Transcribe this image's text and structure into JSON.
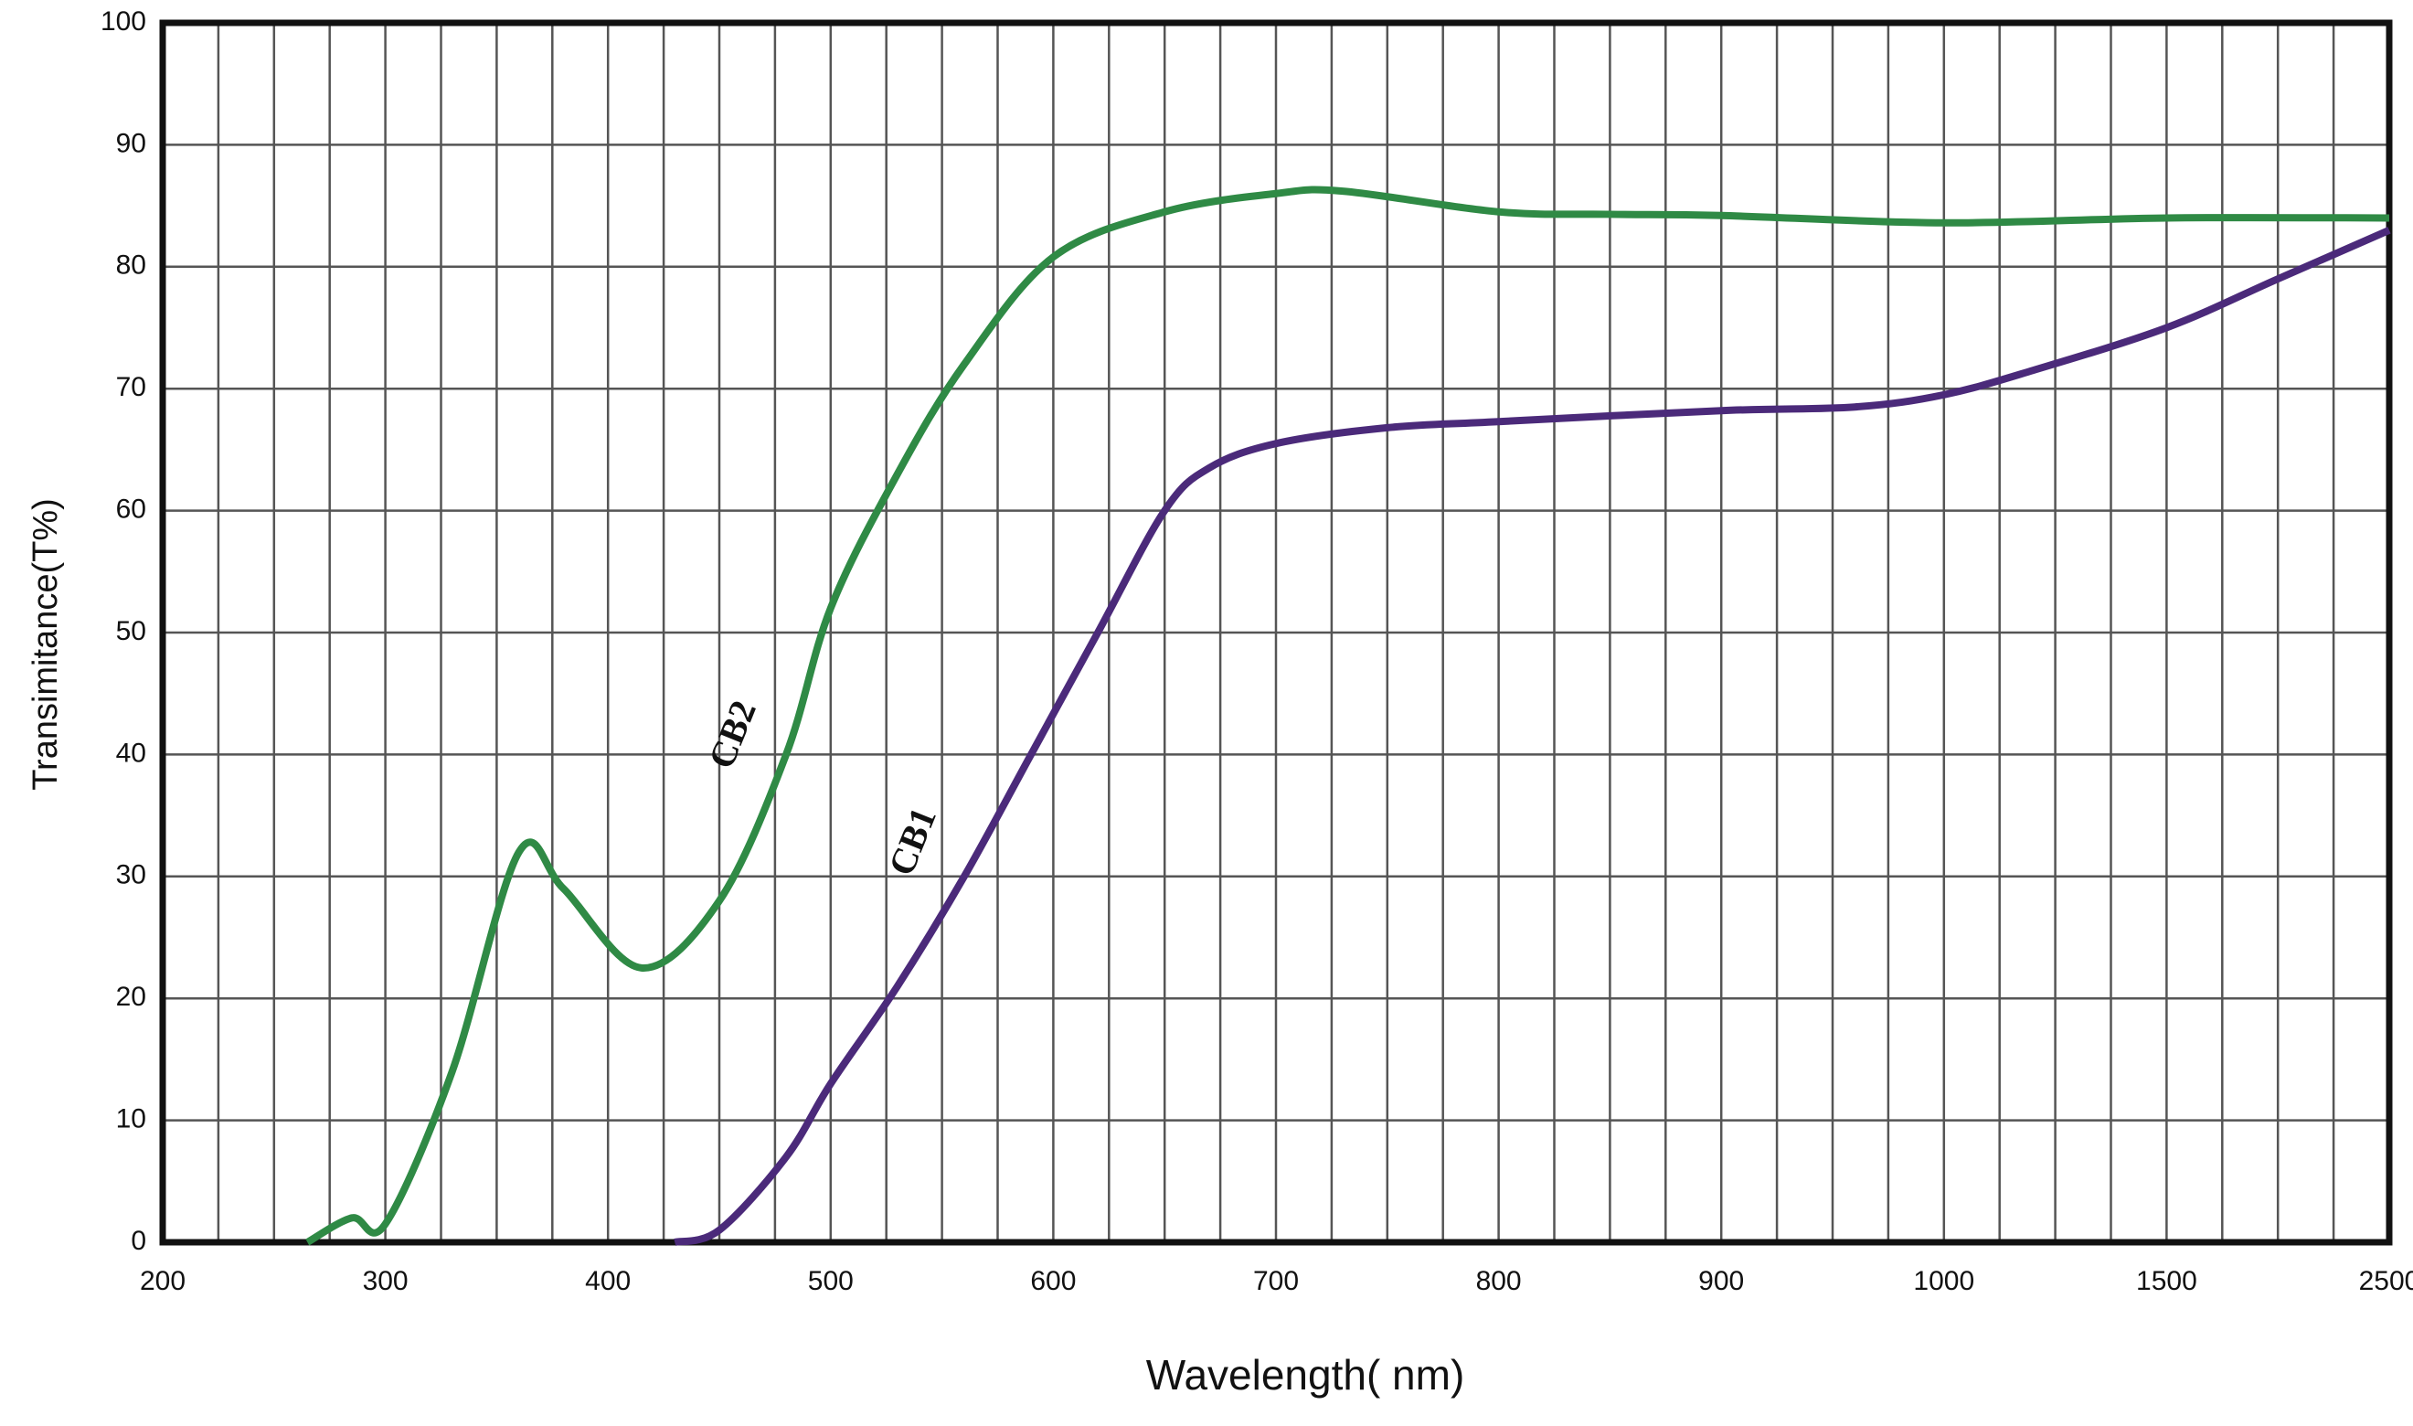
{
  "chart_data": {
    "type": "line",
    "x_label": "Wavelength( nm)",
    "y_label": "Transimitance(T%)",
    "xlim": [
      200,
      2500
    ],
    "xticks": [
      200,
      300,
      400,
      500,
      600,
      700,
      800,
      900,
      1000,
      1500,
      2500
    ],
    "ylim": [
      0,
      100
    ],
    "yticks": [
      0,
      10,
      20,
      30,
      40,
      50,
      60,
      70,
      80,
      90,
      100
    ],
    "grid": true,
    "series": [
      {
        "name": "CB2",
        "color": "#2f8a45",
        "x": [
          265,
          285,
          300,
          330,
          360,
          380,
          415,
          450,
          480,
          500,
          530,
          560,
          600,
          650,
          700,
          730,
          800,
          850,
          900,
          1000,
          1500,
          2500
        ],
        "values": [
          0,
          2,
          1.5,
          14,
          32,
          29,
          22.5,
          28,
          40,
          52,
          63,
          72,
          80.8,
          84.5,
          86,
          86.2,
          84.5,
          84.3,
          84.2,
          83.6,
          84,
          84
        ]
      },
      {
        "name": "CB1",
        "color": "#4b2a7a",
        "x": [
          430,
          450,
          480,
          500,
          530,
          560,
          590,
          620,
          650,
          670,
          700,
          750,
          800,
          900,
          960,
          1000,
          1200,
          1500,
          2000,
          2500
        ],
        "values": [
          0,
          1,
          7,
          13,
          21,
          30,
          40,
          50,
          60,
          63.5,
          65.5,
          66.8,
          67.3,
          68.2,
          68.5,
          69.5,
          71.5,
          75,
          79,
          83
        ]
      }
    ]
  }
}
